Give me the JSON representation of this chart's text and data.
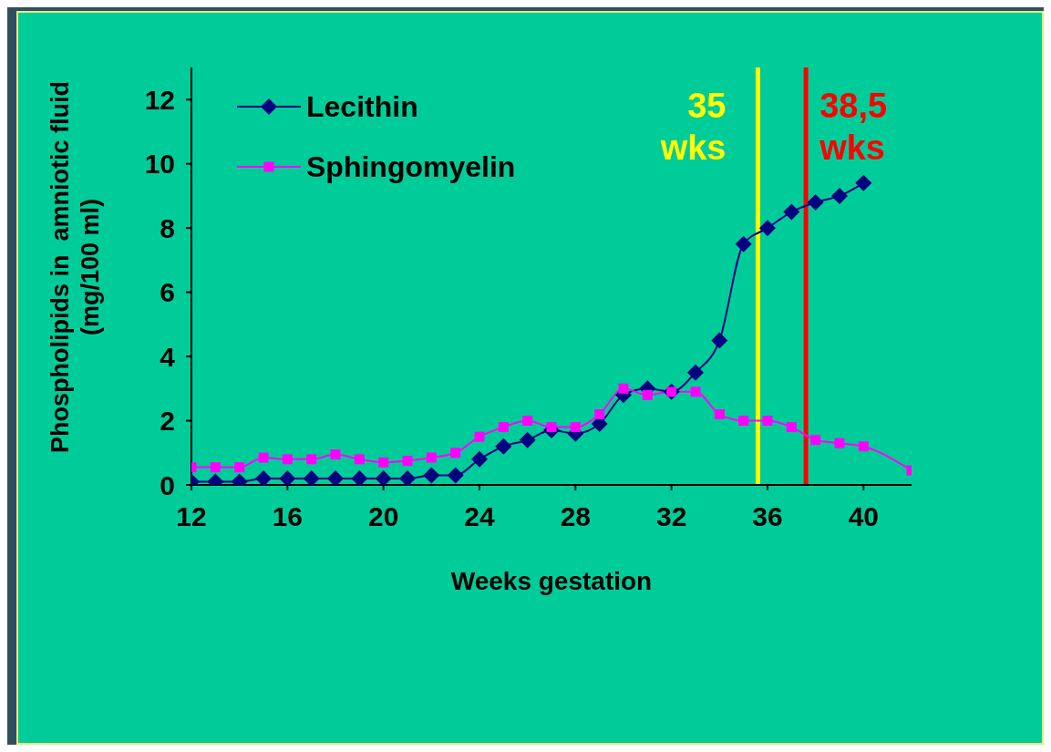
{
  "chart_data": {
    "type": "line",
    "xlabel": "Weeks gestation",
    "ylabel": "Phospholipids in  amniotic fluid\n(mg/100 ml)",
    "x": [
      12,
      13,
      14,
      15,
      16,
      17,
      18,
      19,
      20,
      21,
      22,
      23,
      24,
      25,
      26,
      27,
      28,
      29,
      30,
      31,
      32,
      33,
      34,
      35,
      36,
      37,
      38,
      39,
      40,
      42
    ],
    "series": [
      {
        "name": "Lecithin",
        "color": "#000080",
        "marker": "diamond",
        "values": [
          0.1,
          0.1,
          0.1,
          0.2,
          0.2,
          0.2,
          0.2,
          0.2,
          0.2,
          0.2,
          0.3,
          0.3,
          0.8,
          1.2,
          1.4,
          1.7,
          1.6,
          1.9,
          2.8,
          3.0,
          2.9,
          3.5,
          4.5,
          7.5,
          8.0,
          8.5,
          8.8,
          9.0,
          9.4,
          null
        ]
      },
      {
        "name": "Sphingomyelin",
        "color": "#ff00ff",
        "marker": "square",
        "values": [
          0.55,
          0.55,
          0.55,
          0.85,
          0.8,
          0.8,
          0.95,
          0.8,
          0.7,
          0.75,
          0.85,
          1.0,
          1.5,
          1.8,
          2.0,
          1.8,
          1.8,
          2.2,
          3.0,
          2.8,
          2.9,
          2.9,
          2.2,
          2.0,
          2.0,
          1.8,
          1.4,
          1.3,
          1.2,
          0.45
        ]
      }
    ],
    "xlim": [
      12,
      42
    ],
    "xticks": [
      12,
      16,
      20,
      24,
      28,
      32,
      36,
      40
    ],
    "ylim": [
      0,
      13
    ],
    "yticks": [
      0,
      2,
      4,
      6,
      8,
      10,
      12
    ],
    "ref_lines": [
      {
        "axis": "x",
        "value": 35.6,
        "label": "35 wks",
        "color": "#ffff00"
      },
      {
        "axis": "x",
        "value": 37.6,
        "label": "38,5 wks",
        "color": "#ff0000"
      }
    ],
    "grid": false,
    "legend": "top left"
  }
}
